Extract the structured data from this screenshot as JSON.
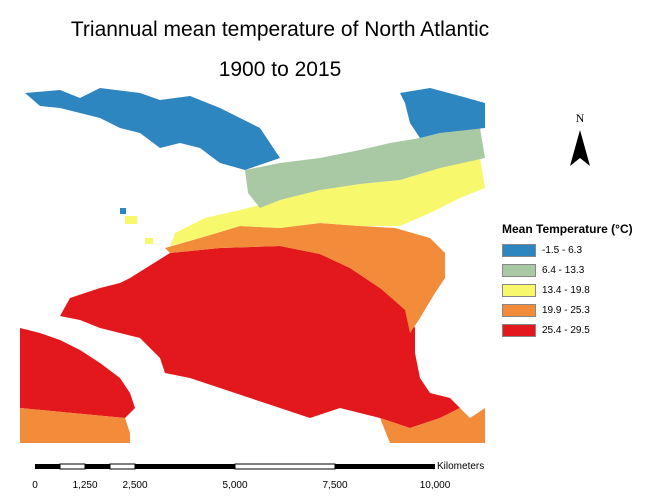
{
  "title": {
    "line1": "Triannual mean temperature of North Atlantic",
    "line2": "1900 to 2015"
  },
  "north_arrow": {
    "label": "N"
  },
  "legend": {
    "title": "Mean Temperature (°C)",
    "classes": [
      {
        "label": "-1.5 - 6.3",
        "color": "#2e86c1"
      },
      {
        "label": "6.4 - 13.3",
        "color": "#a9c9a4"
      },
      {
        "label": "13.4 - 19.8",
        "color": "#f7f86b"
      },
      {
        "label": "19.9 - 25.3",
        "color": "#f28c3a"
      },
      {
        "label": "25.4 - 29.5",
        "color": "#e3181c"
      }
    ]
  },
  "scale_bar": {
    "unit": "Kilometers",
    "ticks": [
      "0",
      "1,250",
      "2,500",
      "5,000",
      "7,500",
      "10,000"
    ]
  }
}
